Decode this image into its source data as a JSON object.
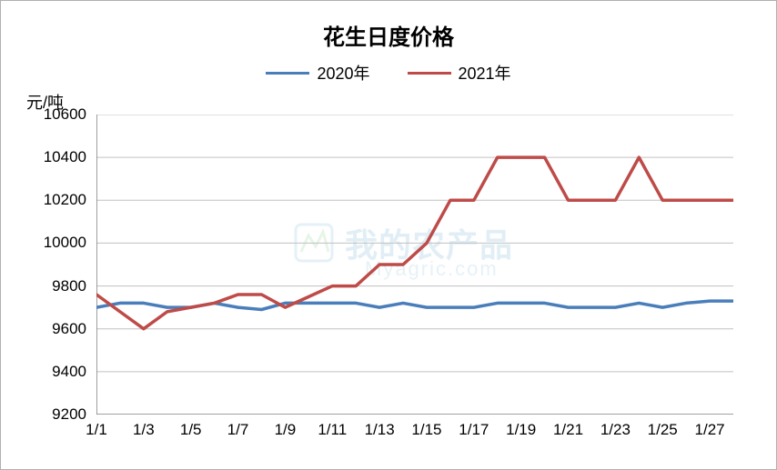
{
  "chart": {
    "type": "line",
    "title": "花生日度价格",
    "title_fontsize": 24,
    "title_fontweight": "bold",
    "y_axis_label": "元/吨",
    "y_axis_label_fontsize": 18,
    "background_color": "#ffffff",
    "border_color": "#b0b0b0",
    "grid_color": "#c0c0c0",
    "grid_linewidth": 1,
    "axis_color": "#808080",
    "axis_linewidth": 1.5,
    "tick_label_fontsize": 17,
    "ylim": [
      9200,
      10600
    ],
    "ytick_step": 200,
    "yticks": [
      9200,
      9400,
      9600,
      9800,
      10000,
      10200,
      10400,
      10600
    ],
    "xtick_labels": [
      "1/1",
      "1/3",
      "1/5",
      "1/7",
      "1/9",
      "1/11",
      "1/13",
      "1/15",
      "1/17",
      "1/19",
      "1/21",
      "1/23",
      "1/25",
      "1/27"
    ],
    "xtick_indices": [
      0,
      2,
      4,
      6,
      8,
      10,
      12,
      14,
      16,
      18,
      20,
      22,
      24,
      26
    ],
    "x_categories": [
      "1/1",
      "1/2",
      "1/3",
      "1/4",
      "1/5",
      "1/6",
      "1/7",
      "1/8",
      "1/9",
      "1/10",
      "1/11",
      "1/12",
      "1/13",
      "1/14",
      "1/15",
      "1/16",
      "1/17",
      "1/18",
      "1/19",
      "1/20",
      "1/21",
      "1/22",
      "1/23",
      "1/24",
      "1/25",
      "1/26",
      "1/27",
      "1/28"
    ],
    "legend": {
      "position": "top-center",
      "fontsize": 18,
      "items": [
        {
          "label": "2020年",
          "color": "#4a7ebb",
          "linewidth": 3.5
        },
        {
          "label": "2021年",
          "color": "#be4b48",
          "linewidth": 3.5
        }
      ]
    },
    "series": [
      {
        "name": "2020年",
        "color": "#4a7ebb",
        "linewidth": 3.5,
        "marker": "none",
        "values": [
          9700,
          9720,
          9720,
          9700,
          9700,
          9720,
          9700,
          9690,
          9720,
          9720,
          9720,
          9720,
          9700,
          9720,
          9700,
          9700,
          9700,
          9720,
          9720,
          9720,
          9700,
          9700,
          9700,
          9720,
          9700,
          9720,
          9730,
          9730
        ]
      },
      {
        "name": "2021年",
        "color": "#be4b48",
        "linewidth": 3.5,
        "marker": "none",
        "values": [
          9760,
          9680,
          9600,
          9680,
          9700,
          9720,
          9760,
          9760,
          9700,
          9750,
          9800,
          9800,
          9900,
          9900,
          10000,
          10200,
          10200,
          10400,
          10400,
          10400,
          10200,
          10200,
          10200,
          10400,
          10200,
          10200,
          10200,
          10200
        ]
      }
    ],
    "watermark": {
      "text_main": "我的农产品",
      "text_sub": "Myagric.com",
      "color": "rgba(90,160,200,0.18)"
    }
  }
}
